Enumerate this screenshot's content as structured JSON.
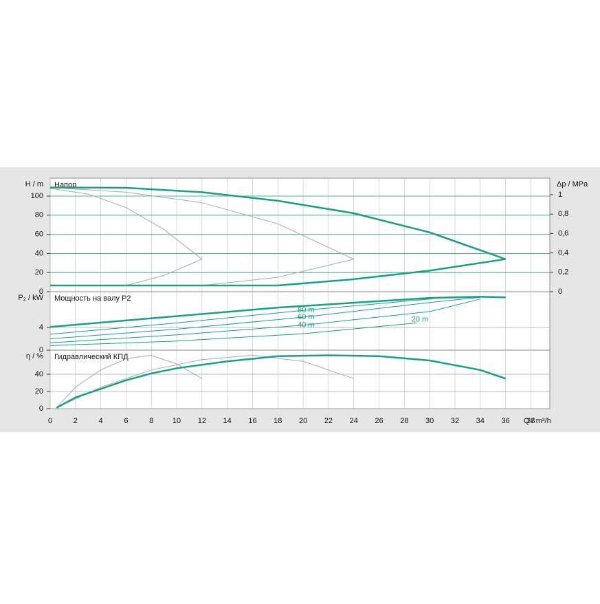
{
  "chart_data": [
    {
      "type": "line",
      "title": "Напор",
      "ylabel": "H / m",
      "y2label": "Δp / MPa",
      "xlim": [
        0,
        39.5
      ],
      "xticks": [
        0,
        2,
        4,
        6,
        8,
        10,
        12,
        14,
        16,
        18,
        20,
        22,
        24,
        26,
        28,
        30,
        32,
        34,
        36,
        38
      ],
      "ylim": [
        0,
        118.7
      ],
      "yticks": [
        0,
        20,
        40,
        60,
        80,
        100
      ],
      "grid": true,
      "grid_color": "#1a9e86",
      "y2lim": [
        0,
        1.17
      ],
      "y2ticks": [
        0,
        {
          "value": 0.2,
          "label": "0,2"
        },
        {
          "value": 0.4,
          "label": "0,4"
        },
        {
          "value": 0.6,
          "label": "0,6"
        },
        {
          "value": 0.8,
          "label": "0,8"
        },
        1
      ],
      "series": [
        {
          "color": "#a9a9a9",
          "width": 1,
          "x": [
            0,
            3,
            6,
            9,
            12
          ],
          "values": [
            108,
            102,
            88,
            65,
            34
          ]
        },
        {
          "color": "#a9a9a9",
          "width": 1,
          "x": [
            0,
            6,
            12,
            18,
            24
          ],
          "values": [
            109,
            104,
            93,
            71,
            34
          ]
        },
        {
          "color": "#a9a9a9",
          "width": 1,
          "x": [
            6,
            9,
            12
          ],
          "values": [
            6.5,
            17,
            34
          ]
        },
        {
          "color": "#a9a9a9",
          "width": 1,
          "x": [
            12,
            18,
            24
          ],
          "values": [
            6.5,
            15,
            34
          ]
        },
        {
          "color": "#1a9e86",
          "width": 2.5,
          "x": [
            0,
            6,
            12,
            18,
            24,
            30,
            36
          ],
          "values": [
            109,
            108.6,
            104,
            95,
            82,
            62,
            34
          ]
        },
        {
          "color": "#1a9e86",
          "width": 2.5,
          "x": [
            0,
            18,
            24,
            30,
            36
          ],
          "values": [
            6.5,
            6.5,
            13,
            22,
            34
          ]
        }
      ]
    },
    {
      "type": "line",
      "title": "Мощность на валу P2",
      "ylabel": "P₂ / kW",
      "xlim": [
        0,
        39.5
      ],
      "xticks": [
        0,
        2,
        4,
        6,
        8,
        10,
        12,
        14,
        16,
        18,
        20,
        22,
        24,
        26,
        28,
        30,
        32,
        34,
        36,
        38
      ],
      "ylim": [
        0,
        10.3
      ],
      "yticks": [
        0,
        4
      ],
      "grid": true,
      "grid_color": "#a9a9a9",
      "series": [
        {
          "name": "80 m",
          "color": "#1a9e86",
          "width": 1,
          "x": [
            0,
            10,
            20,
            30,
            31
          ],
          "values": [
            2.8,
            4.8,
            7.0,
            9.0,
            9.3
          ]
        },
        {
          "name": "60 m",
          "color": "#1a9e86",
          "width": 1,
          "x": [
            0,
            10,
            20,
            30,
            34
          ],
          "values": [
            2.0,
            3.7,
            5.8,
            8.4,
            9.3
          ]
        },
        {
          "name": "40 m",
          "color": "#1a9e86",
          "width": 1,
          "x": [
            0,
            10,
            20,
            30,
            34
          ],
          "values": [
            1.3,
            2.7,
            4.4,
            6.8,
            9.0
          ]
        },
        {
          "name": "20 m",
          "color": "#1a9e86",
          "width": 1,
          "x": [
            0,
            10,
            20,
            29
          ],
          "values": [
            0.8,
            1.6,
            2.9,
            4.8
          ]
        },
        {
          "color": "#1a9e86",
          "width": 2.5,
          "x": [
            0,
            18,
            30,
            34,
            36
          ],
          "values": [
            4.1,
            7.5,
            9.2,
            9.4,
            9.3
          ]
        }
      ]
    },
    {
      "type": "line",
      "title": "Гидравлический КПД",
      "ylabel": "η / %",
      "xlabel": "Q / m³/h",
      "xlim": [
        0,
        39.5
      ],
      "xticks": [
        0,
        2,
        4,
        6,
        8,
        10,
        12,
        14,
        16,
        18,
        20,
        22,
        24,
        26,
        28,
        30,
        32,
        34,
        36,
        38
      ],
      "ylim": [
        0,
        68
      ],
      "yticks": [
        0,
        20,
        40
      ],
      "grid": true,
      "grid_color": "#a9a9a9",
      "series": [
        {
          "color": "#a9a9a9",
          "width": 1,
          "x": [
            0.5,
            2,
            4,
            6,
            8,
            10,
            12
          ],
          "values": [
            1,
            25,
            45,
            58,
            62,
            52,
            35
          ]
        },
        {
          "color": "#a9a9a9",
          "width": 1,
          "x": [
            0.5,
            4,
            8,
            12,
            16,
            20,
            24
          ],
          "values": [
            1,
            25,
            45,
            57,
            62,
            55,
            35
          ]
        },
        {
          "color": "#1a9e86",
          "width": 2.5,
          "x": [
            0.5,
            2,
            4,
            6,
            8,
            10,
            14,
            18,
            22,
            26,
            30,
            34,
            36
          ],
          "values": [
            1,
            13,
            23,
            33,
            41,
            47,
            55,
            61,
            62,
            61,
            56,
            45,
            35
          ]
        }
      ]
    }
  ]
}
